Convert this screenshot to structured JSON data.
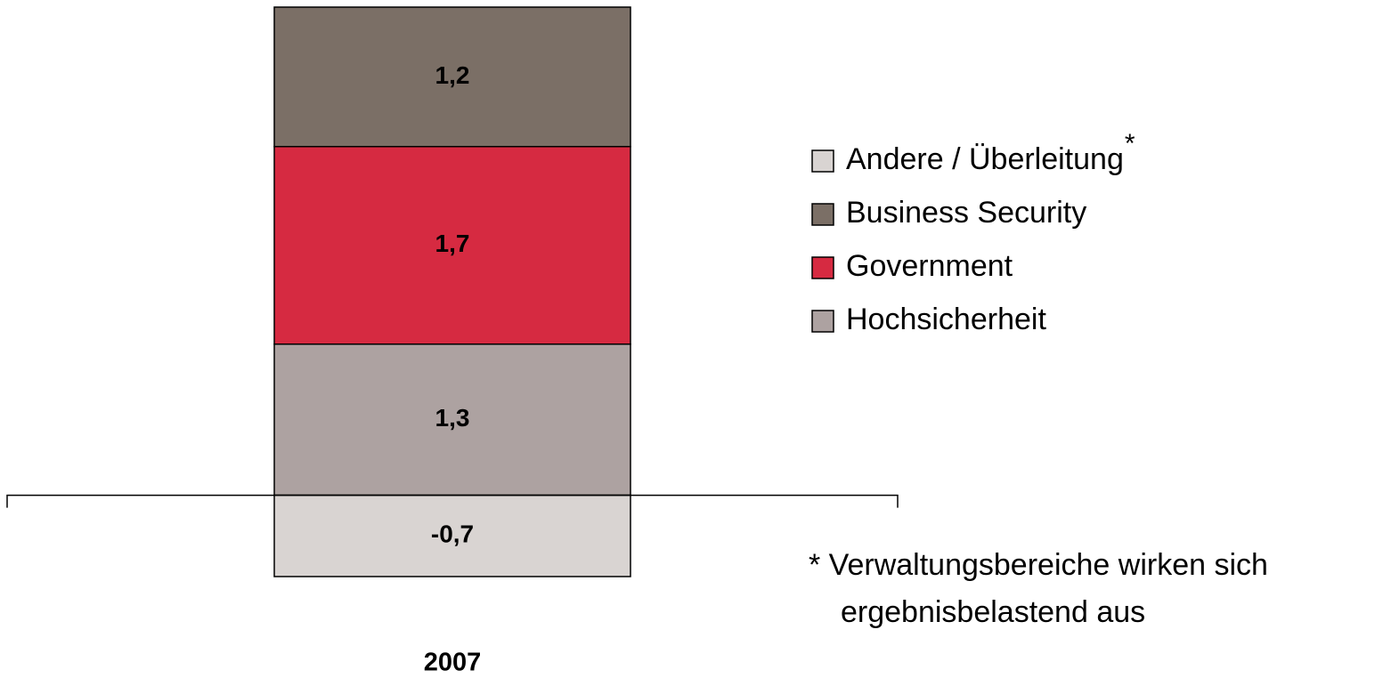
{
  "chart_data": {
    "type": "stacked_bar",
    "categories": [
      "2007"
    ],
    "series": [
      {
        "name": "Andere / Überleitung",
        "color": "#d9d4d2",
        "values": [
          -0.7
        ],
        "value_labels": [
          "-0,7"
        ]
      },
      {
        "name": "Business Security",
        "color": "#7b6f66",
        "values": [
          1.2
        ],
        "value_labels": [
          "1,2"
        ]
      },
      {
        "name": "Government",
        "color": "#d62a41",
        "values": [
          1.7
        ],
        "value_labels": [
          "1,7"
        ]
      },
      {
        "name": "Hochsicherheit",
        "color": "#ada2a1",
        "values": [
          1.3
        ],
        "value_labels": [
          "1,3"
        ]
      }
    ],
    "legend_footnote_marker": "*",
    "footnote": [
      "* Verwaltungsbereiche wirken sich",
      "ergebnisbelastend aus"
    ],
    "ylim": [
      -0.7,
      4.2
    ],
    "legend": "right"
  }
}
